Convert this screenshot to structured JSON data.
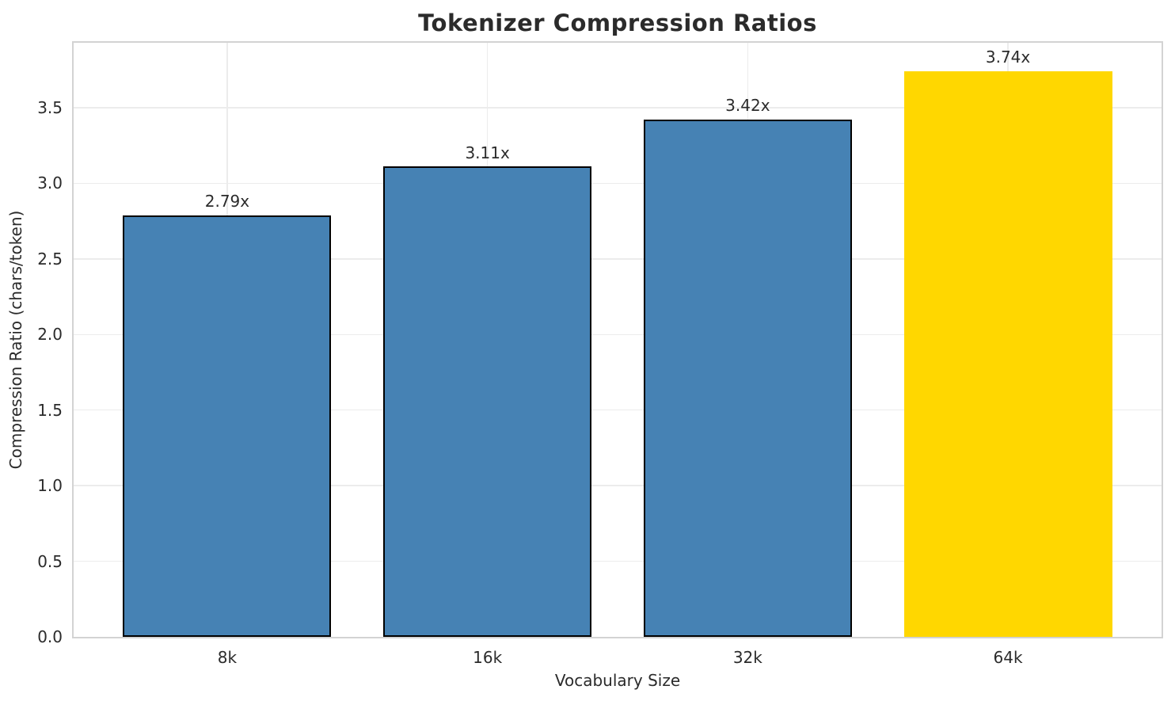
{
  "chart_data": {
    "type": "bar",
    "title": "Tokenizer Compression Ratios",
    "xlabel": "Vocabulary Size",
    "ylabel": "Compression Ratio (chars/token)",
    "categories": [
      "8k",
      "16k",
      "32k",
      "64k"
    ],
    "values": [
      2.79,
      3.11,
      3.42,
      3.74
    ],
    "bar_labels": [
      "2.79x",
      "3.11x",
      "3.42x",
      "3.74x"
    ],
    "bar_colors": [
      "#4682B4",
      "#4682B4",
      "#4682B4",
      "#FFD700"
    ],
    "bar_edges": [
      "#000000",
      "#000000",
      "#000000",
      "none"
    ],
    "highlight_index": 3,
    "yticks": [
      0.0,
      0.5,
      1.0,
      1.5,
      2.0,
      2.5,
      3.0,
      3.5
    ],
    "ytick_labels": [
      "0.0",
      "0.5",
      "1.0",
      "1.5",
      "2.0",
      "2.5",
      "3.0",
      "3.5"
    ],
    "ylim": [
      0,
      3.93
    ],
    "xlim": [
      -0.59,
      3.59
    ],
    "bar_width": 0.8,
    "grid": true,
    "legend": "none",
    "colors": {
      "grid": "#ececec",
      "spine": "#d3d3d3",
      "text": "#2b2b2b",
      "background": "#ffffff"
    }
  }
}
